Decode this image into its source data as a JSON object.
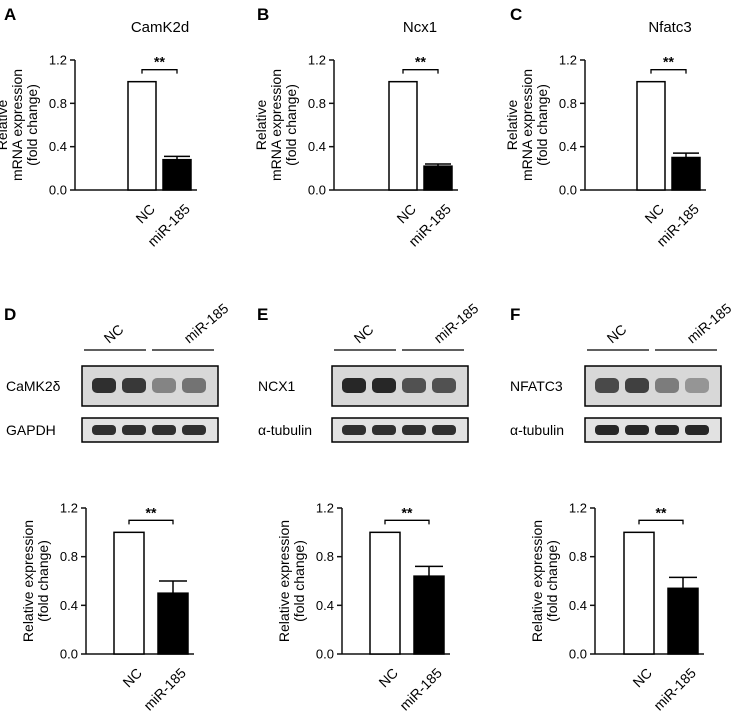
{
  "panels": {
    "A": "A",
    "B": "B",
    "C": "C",
    "D": "D",
    "E": "E",
    "F": "F"
  },
  "chart_data": [
    {
      "panel": "A",
      "type": "bar",
      "title": "CamK2d",
      "categories": [
        "NC",
        "miR-185"
      ],
      "values": [
        1.0,
        0.28
      ],
      "errors": [
        0,
        0.03
      ],
      "ylabel": [
        "Relative",
        "mRNA expression",
        "(fold change)"
      ],
      "ylim": [
        0,
        1.2
      ],
      "yticks": [
        "0.0",
        "0.4",
        "0.8",
        "1.2"
      ],
      "significance": "**"
    },
    {
      "panel": "B",
      "type": "bar",
      "title": "Ncx1",
      "categories": [
        "NC",
        "miR-185"
      ],
      "values": [
        1.0,
        0.22
      ],
      "errors": [
        0,
        0.02
      ],
      "ylabel": [
        "Relative",
        "mRNA expression",
        "(fold change)"
      ],
      "ylim": [
        0,
        1.2
      ],
      "yticks": [
        "0.0",
        "0.4",
        "0.8",
        "1.2"
      ],
      "significance": "**"
    },
    {
      "panel": "C",
      "type": "bar",
      "title": "Nfatc3",
      "categories": [
        "NC",
        "miR-185"
      ],
      "values": [
        1.0,
        0.3
      ],
      "errors": [
        0,
        0.04
      ],
      "ylabel": [
        "Relative",
        "mRNA expression",
        "(fold change)"
      ],
      "ylim": [
        0,
        1.2
      ],
      "yticks": [
        "0.0",
        "0.4",
        "0.8",
        "1.2"
      ],
      "significance": "**"
    },
    {
      "panel": "D",
      "type": "bar",
      "title": "",
      "categories": [
        "NC",
        "miR-185"
      ],
      "values": [
        1.0,
        0.5
      ],
      "errors": [
        0,
        0.1
      ],
      "ylabel": [
        "Relative expression",
        "(fold change)"
      ],
      "ylim": [
        0,
        1.2
      ],
      "yticks": [
        "0.0",
        "0.4",
        "0.8",
        "1.2"
      ],
      "significance": "**"
    },
    {
      "panel": "E",
      "type": "bar",
      "title": "",
      "categories": [
        "NC",
        "miR-185"
      ],
      "values": [
        1.0,
        0.64
      ],
      "errors": [
        0,
        0.08
      ],
      "ylabel": [
        "Relative expression",
        "(fold change)"
      ],
      "ylim": [
        0,
        1.2
      ],
      "yticks": [
        "0.0",
        "0.4",
        "0.8",
        "1.2"
      ],
      "significance": "**"
    },
    {
      "panel": "F",
      "type": "bar",
      "title": "",
      "categories": [
        "NC",
        "miR-185"
      ],
      "values": [
        1.0,
        0.54
      ],
      "errors": [
        0,
        0.09
      ],
      "ylabel": [
        "Relative expression",
        "(fold change)"
      ],
      "ylim": [
        0,
        1.2
      ],
      "yticks": [
        "0.0",
        "0.4",
        "0.8",
        "1.2"
      ],
      "significance": "**"
    }
  ],
  "blots": [
    {
      "panel": "D",
      "groups": [
        "NC",
        "miR-185"
      ],
      "target": "CaMK2δ",
      "loading": "GAPDH",
      "target_intensity": [
        0.9,
        0.85,
        0.4,
        0.5
      ],
      "loading_intensity": [
        0.9,
        0.9,
        0.9,
        0.9
      ]
    },
    {
      "panel": "E",
      "groups": [
        "NC",
        "miR-185"
      ],
      "target": "NCX1",
      "loading": "α-tubulin",
      "target_intensity": [
        0.95,
        0.95,
        0.7,
        0.7
      ],
      "loading_intensity": [
        0.9,
        0.9,
        0.9,
        0.9
      ]
    },
    {
      "panel": "F",
      "groups": [
        "NC",
        "miR-185"
      ],
      "target": "NFATC3",
      "loading": "α-tubulin",
      "target_intensity": [
        0.75,
        0.8,
        0.45,
        0.3
      ],
      "loading_intensity": [
        0.95,
        0.95,
        0.95,
        0.95
      ]
    }
  ],
  "colors": {
    "bar_nc": "#ffffff",
    "bar_mir": "#000000",
    "axis": "#111111"
  }
}
